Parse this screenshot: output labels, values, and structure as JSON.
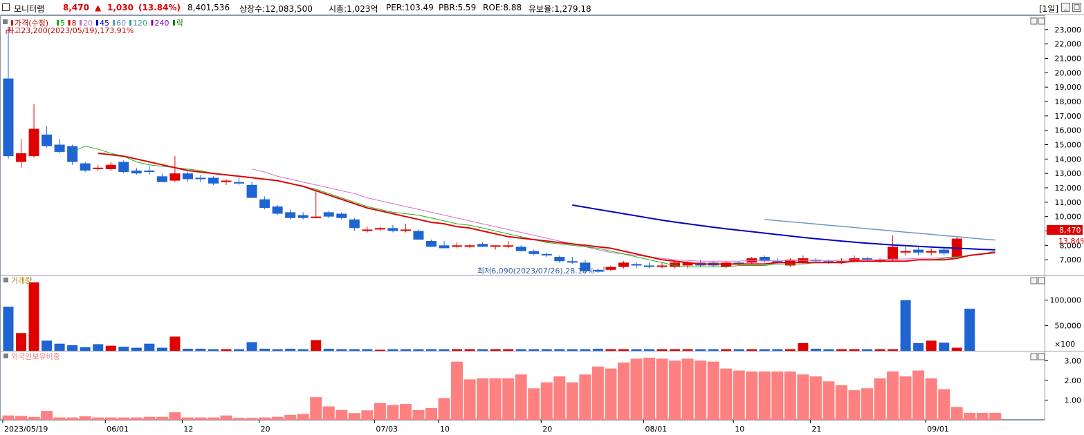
{
  "header": {
    "name": "모니터랩",
    "price": "8,470",
    "change_arrow": "▲",
    "change": "1,030",
    "change_pct": "(13.84%)",
    "volume": "8,401,536",
    "shares": "상장수:12,083,500",
    "mcap": "시총:1,023억",
    "per": "PER:103.49",
    "pbr": "PBR:5.59",
    "roe": "ROE:8.88",
    "float_rate": "유보율:1,279.18",
    "period": "[1일]"
  },
  "price_pane": {
    "legend": [
      {
        "label": "가격(수정)",
        "color": "#e00000"
      },
      {
        "label": "5",
        "color": "#00b000"
      },
      {
        "label": "8",
        "color": "#e00000"
      },
      {
        "label": "20",
        "color": "#c070c0"
      },
      {
        "label": "45",
        "color": "#0000c0"
      },
      {
        "label": "60",
        "color": "#6090c0"
      },
      {
        "label": "120",
        "color": "#40a0a0"
      },
      {
        "label": "240",
        "color": "#8000c0"
      },
      {
        "label": "락",
        "color": "#008000"
      }
    ],
    "high_note": "최고23,200(2023/05/19),173.91%",
    "low_note": "최저6,090(2023/07/26),28.10%",
    "current_price_tag": "8,470",
    "current_pct_tag": "13.84%"
  },
  "volume_pane": {
    "title": "거래량",
    "unit_label": "×100"
  },
  "foreign_pane": {
    "title": "외국인보유비중"
  },
  "chart_data": [
    {
      "type": "candlestick",
      "title": "가격(수정)",
      "ylim": [
        6000,
        24000
      ],
      "y_ticks": [
        "23,000",
        "22,000",
        "21,000",
        "20,000",
        "19,000",
        "18,000",
        "17,000",
        "16,000",
        "15,000",
        "14,000",
        "13,000",
        "12,000",
        "11,000",
        "10,000",
        "9,000",
        "8,000",
        "7,000"
      ],
      "x_tick_labels": [
        "2023/05/19",
        "06/01",
        "12",
        "20",
        "07/03",
        "10",
        "20",
        "08/01",
        "10",
        "21",
        "09/01"
      ],
      "x_tick_index": [
        0,
        8,
        14,
        20,
        29,
        34,
        42,
        50,
        57,
        63,
        72
      ],
      "candles": [
        {
          "o": 19600,
          "h": 23200,
          "l": 14000,
          "c": 14200
        },
        {
          "o": 13800,
          "h": 15400,
          "l": 13400,
          "c": 14400
        },
        {
          "o": 14200,
          "h": 17800,
          "l": 14100,
          "c": 16100
        },
        {
          "o": 15700,
          "h": 16300,
          "l": 14800,
          "c": 14900
        },
        {
          "o": 15000,
          "h": 15400,
          "l": 14400,
          "c": 14500
        },
        {
          "o": 14900,
          "h": 15000,
          "l": 13600,
          "c": 13800
        },
        {
          "o": 13700,
          "h": 13800,
          "l": 13100,
          "c": 13200
        },
        {
          "o": 13400,
          "h": 13600,
          "l": 13200,
          "c": 13400
        },
        {
          "o": 13300,
          "h": 13800,
          "l": 13200,
          "c": 13600
        },
        {
          "o": 13800,
          "h": 13900,
          "l": 13000,
          "c": 13100
        },
        {
          "o": 13200,
          "h": 13400,
          "l": 12900,
          "c": 13000
        },
        {
          "o": 13200,
          "h": 13500,
          "l": 12900,
          "c": 13100
        },
        {
          "o": 12800,
          "h": 13000,
          "l": 12400,
          "c": 12400
        },
        {
          "o": 12500,
          "h": 14200,
          "l": 12400,
          "c": 13000
        },
        {
          "o": 13000,
          "h": 13100,
          "l": 12400,
          "c": 12600
        },
        {
          "o": 12700,
          "h": 12900,
          "l": 12400,
          "c": 12600
        },
        {
          "o": 12700,
          "h": 12800,
          "l": 12200,
          "c": 12300
        },
        {
          "o": 12400,
          "h": 12600,
          "l": 12200,
          "c": 12500
        },
        {
          "o": 12400,
          "h": 12700,
          "l": 12200,
          "c": 12300
        },
        {
          "o": 12200,
          "h": 12400,
          "l": 11300,
          "c": 11300
        },
        {
          "o": 11200,
          "h": 11400,
          "l": 10500,
          "c": 10600
        },
        {
          "o": 10700,
          "h": 10800,
          "l": 10100,
          "c": 10200
        },
        {
          "o": 10300,
          "h": 10500,
          "l": 9800,
          "c": 9900
        },
        {
          "o": 10100,
          "h": 10300,
          "l": 9800,
          "c": 9900
        },
        {
          "o": 9900,
          "h": 11800,
          "l": 9900,
          "c": 10000
        },
        {
          "o": 10300,
          "h": 10400,
          "l": 9900,
          "c": 10000
        },
        {
          "o": 10200,
          "h": 10300,
          "l": 9800,
          "c": 9900
        },
        {
          "o": 9800,
          "h": 9900,
          "l": 9000,
          "c": 9200
        },
        {
          "o": 9100,
          "h": 9300,
          "l": 8900,
          "c": 9100
        },
        {
          "o": 9100,
          "h": 9300,
          "l": 9000,
          "c": 9200
        },
        {
          "o": 9200,
          "h": 9400,
          "l": 8900,
          "c": 9000
        },
        {
          "o": 9100,
          "h": 9500,
          "l": 8900,
          "c": 9100
        },
        {
          "o": 9000,
          "h": 9100,
          "l": 8400,
          "c": 8400
        },
        {
          "o": 8300,
          "h": 8400,
          "l": 7900,
          "c": 7900
        },
        {
          "o": 8000,
          "h": 8300,
          "l": 7800,
          "c": 7800
        },
        {
          "o": 7900,
          "h": 8200,
          "l": 7800,
          "c": 8000
        },
        {
          "o": 7900,
          "h": 8100,
          "l": 7800,
          "c": 8000
        },
        {
          "o": 8100,
          "h": 8200,
          "l": 7900,
          "c": 7900
        },
        {
          "o": 7900,
          "h": 8000,
          "l": 7700,
          "c": 8000
        },
        {
          "o": 7900,
          "h": 8300,
          "l": 7800,
          "c": 8000
        },
        {
          "o": 7900,
          "h": 8000,
          "l": 7600,
          "c": 7600
        },
        {
          "o": 7600,
          "h": 7700,
          "l": 7300,
          "c": 7400
        },
        {
          "o": 7400,
          "h": 7500,
          "l": 7200,
          "c": 7300
        },
        {
          "o": 7200,
          "h": 7300,
          "l": 6800,
          "c": 6900
        },
        {
          "o": 6900,
          "h": 7200,
          "l": 6700,
          "c": 6800
        },
        {
          "o": 6800,
          "h": 7000,
          "l": 6100,
          "c": 6200
        },
        {
          "o": 6300,
          "h": 6400,
          "l": 6090,
          "c": 6200
        },
        {
          "o": 6300,
          "h": 6600,
          "l": 6200,
          "c": 6500
        },
        {
          "o": 6500,
          "h": 6900,
          "l": 6400,
          "c": 6800
        },
        {
          "o": 6700,
          "h": 6800,
          "l": 6400,
          "c": 6600
        },
        {
          "o": 6600,
          "h": 6800,
          "l": 6400,
          "c": 6500
        },
        {
          "o": 6500,
          "h": 6800,
          "l": 6400,
          "c": 6600
        },
        {
          "o": 6500,
          "h": 6900,
          "l": 6400,
          "c": 6800
        },
        {
          "o": 6600,
          "h": 6900,
          "l": 6400,
          "c": 6800
        },
        {
          "o": 6800,
          "h": 7000,
          "l": 6500,
          "c": 6600
        },
        {
          "o": 6800,
          "h": 6900,
          "l": 6500,
          "c": 6600
        },
        {
          "o": 6500,
          "h": 6900,
          "l": 6400,
          "c": 6800
        },
        {
          "o": 6800,
          "h": 6900,
          "l": 6600,
          "c": 6700
        },
        {
          "o": 6800,
          "h": 7200,
          "l": 6700,
          "c": 7100
        },
        {
          "o": 7200,
          "h": 7300,
          "l": 6800,
          "c": 6900
        },
        {
          "o": 6900,
          "h": 7100,
          "l": 6700,
          "c": 6800
        },
        {
          "o": 6600,
          "h": 7100,
          "l": 6500,
          "c": 7000
        },
        {
          "o": 6800,
          "h": 7300,
          "l": 6700,
          "c": 7100
        },
        {
          "o": 7000,
          "h": 7100,
          "l": 6800,
          "c": 6900
        },
        {
          "o": 6900,
          "h": 7000,
          "l": 6700,
          "c": 6800
        },
        {
          "o": 6800,
          "h": 7100,
          "l": 6700,
          "c": 6900
        },
        {
          "o": 6900,
          "h": 7300,
          "l": 6800,
          "c": 7100
        },
        {
          "o": 7100,
          "h": 7200,
          "l": 6900,
          "c": 7000
        },
        {
          "o": 6900,
          "h": 7100,
          "l": 6800,
          "c": 7000
        },
        {
          "o": 7000,
          "h": 8700,
          "l": 6900,
          "c": 7900
        },
        {
          "o": 7500,
          "h": 7900,
          "l": 7300,
          "c": 7600
        },
        {
          "o": 7700,
          "h": 7900,
          "l": 7300,
          "c": 7500
        },
        {
          "o": 7500,
          "h": 7800,
          "l": 7300,
          "c": 7600
        },
        {
          "o": 7700,
          "h": 7900,
          "l": 7300,
          "c": 7440
        },
        {
          "o": 7200,
          "h": 8600,
          "l": 7200,
          "c": 8470
        }
      ]
    },
    {
      "type": "bar",
      "title": "거래량",
      "ylim": [
        0,
        150000
      ],
      "y_ticks": [
        100000,
        50000
      ],
      "y_tick_labels": [
        "100,000",
        "50,000"
      ],
      "values": [
        87000,
        35000,
        135000,
        20000,
        14000,
        11000,
        7000,
        13000,
        10000,
        8000,
        6000,
        14000,
        6000,
        28000,
        4000,
        4000,
        3000,
        3000,
        3000,
        17000,
        4000,
        3000,
        4000,
        3000,
        21000,
        4000,
        3000,
        3000,
        3000,
        2000,
        3000,
        3000,
        3000,
        3000,
        3000,
        3000,
        3000,
        3000,
        3000,
        3000,
        3000,
        3000,
        3000,
        3000,
        3000,
        3000,
        4000,
        3000,
        3000,
        3000,
        3000,
        3000,
        3000,
        3000,
        3000,
        3000,
        3000,
        3000,
        3000,
        3000,
        3000,
        3000,
        15000,
        4000,
        3000,
        3000,
        3000,
        3000,
        3000,
        3000,
        100000,
        15000,
        20000,
        16000,
        6000,
        83000
      ],
      "up": [
        false,
        true,
        true,
        false,
        false,
        false,
        false,
        false,
        true,
        false,
        false,
        false,
        false,
        true,
        false,
        false,
        false,
        true,
        false,
        false,
        false,
        false,
        false,
        false,
        true,
        false,
        false,
        false,
        false,
        true,
        false,
        false,
        false,
        false,
        false,
        true,
        true,
        false,
        true,
        true,
        false,
        false,
        false,
        false,
        false,
        false,
        false,
        true,
        true,
        false,
        false,
        true,
        true,
        true,
        false,
        false,
        true,
        false,
        true,
        false,
        false,
        true,
        true,
        false,
        false,
        true,
        true,
        false,
        true,
        true,
        false,
        false,
        true,
        false,
        true
      ]
    },
    {
      "type": "bar",
      "title": "외국인보유비중",
      "ylim": [
        0,
        3.5
      ],
      "y_ticks": [
        3.0,
        2.0,
        1.0
      ],
      "y_tick_labels": [
        "3.00",
        "2.00",
        "1.00"
      ],
      "values": [
        0.22,
        0.2,
        0.14,
        0.45,
        0.12,
        0.12,
        0.18,
        0.12,
        0.12,
        0.12,
        0.12,
        0.15,
        0.15,
        0.38,
        0.12,
        0.12,
        0.12,
        0.22,
        0.1,
        0.1,
        0.12,
        0.15,
        0.25,
        0.3,
        1.15,
        0.68,
        0.5,
        0.34,
        0.48,
        0.85,
        0.75,
        0.8,
        0.5,
        0.6,
        1.1,
        2.95,
        2.05,
        2.1,
        2.1,
        2.1,
        2.3,
        1.6,
        1.9,
        2.2,
        1.9,
        2.3,
        2.7,
        2.6,
        2.9,
        3.1,
        3.15,
        3.1,
        3.0,
        3.1,
        3.0,
        2.95,
        2.6,
        2.5,
        2.45,
        2.45,
        2.45,
        2.45,
        2.3,
        2.2,
        1.95,
        1.75,
        1.5,
        1.6,
        2.1,
        2.45,
        2.2,
        2.5,
        2.1,
        1.55,
        0.65,
        0.35,
        0.35,
        0.35
      ]
    }
  ],
  "ma_lines": {
    "ma5": [
      14500,
      14900,
      14700,
      14400,
      14200,
      13800,
      13600,
      13500,
      13400,
      13300,
      13200,
      13000,
      12900,
      12800,
      12700,
      12600,
      12500,
      12300,
      12100,
      11900,
      11600,
      11300,
      11000,
      10700,
      10500,
      10300,
      10200,
      10100,
      9900,
      9700,
      9500,
      9400,
      9200,
      9000,
      8800,
      8600,
      8400,
      8200,
      8100,
      8000,
      7900,
      7800,
      7600,
      7400,
      7200,
      7000,
      6800,
      6600,
      6500,
      6500,
      6500,
      6500,
      6600,
      6600,
      6600,
      6700,
      6700,
      6700,
      6800,
      6800,
      6800,
      6900,
      6900,
      6900,
      6900,
      6900,
      7000,
      7000,
      7100,
      7200,
      7300,
      7400,
      7600
    ],
    "ma8_start": 7,
    "ma8": [
      14400,
      14300,
      14200,
      14000,
      13800,
      13600,
      13400,
      13200,
      13100,
      13000,
      12900,
      12800,
      12700,
      12600,
      12500,
      12300,
      12100,
      11800,
      11500,
      11200,
      10900,
      10600,
      10400,
      10200,
      10000,
      9800,
      9600,
      9500,
      9300,
      9200,
      9000,
      8800,
      8600,
      8500,
      8400,
      8300,
      8200,
      8100,
      8000,
      7900,
      7800,
      7600,
      7400,
      7200,
      7000,
      6900,
      6800,
      6700,
      6700,
      6700,
      6700,
      6700,
      6700,
      6800,
      6800,
      6800,
      6800,
      6800,
      6800,
      6900,
      6900,
      6900,
      6900,
      6900,
      7000,
      7000,
      7000,
      7100,
      7300,
      7400,
      7500
    ],
    "ma20_start": 19,
    "ma20": [
      13300,
      13100,
      12800,
      12600,
      12400,
      12200,
      12000,
      11800,
      11600,
      11300,
      11100,
      10900,
      10700,
      10500,
      10300,
      10100,
      9900,
      9700,
      9500,
      9300,
      9100,
      8900,
      8700,
      8500,
      8300,
      8100,
      7900,
      7700,
      7500,
      7400,
      7300,
      7200,
      7100,
      7000,
      6950,
      6900,
      6900,
      6900,
      6900,
      6950,
      6950,
      6950,
      6950,
      6950,
      6950,
      6950,
      6950,
      7000,
      7000,
      7000,
      7050,
      7050,
      7100,
      7100,
      7150,
      7200,
      7300
    ],
    "ma45_start": 44,
    "ma45": [
      10800,
      10650,
      10500,
      10350,
      10200,
      10050,
      9900,
      9750,
      9620,
      9500,
      9380,
      9260,
      9150,
      9050,
      8950,
      8850,
      8750,
      8650,
      8550,
      8460,
      8380,
      8300,
      8220,
      8150,
      8090,
      8030,
      7980,
      7930,
      7880,
      7840,
      7800,
      7760,
      7720,
      7690
    ],
    "ma60_start": 59,
    "ma60": [
      9800,
      9720,
      9640,
      9560,
      9480,
      9400,
      9320,
      9240,
      9160,
      9080,
      9000,
      8920,
      8840,
      8760,
      8680,
      8600,
      8520,
      8440,
      8370
    ]
  }
}
